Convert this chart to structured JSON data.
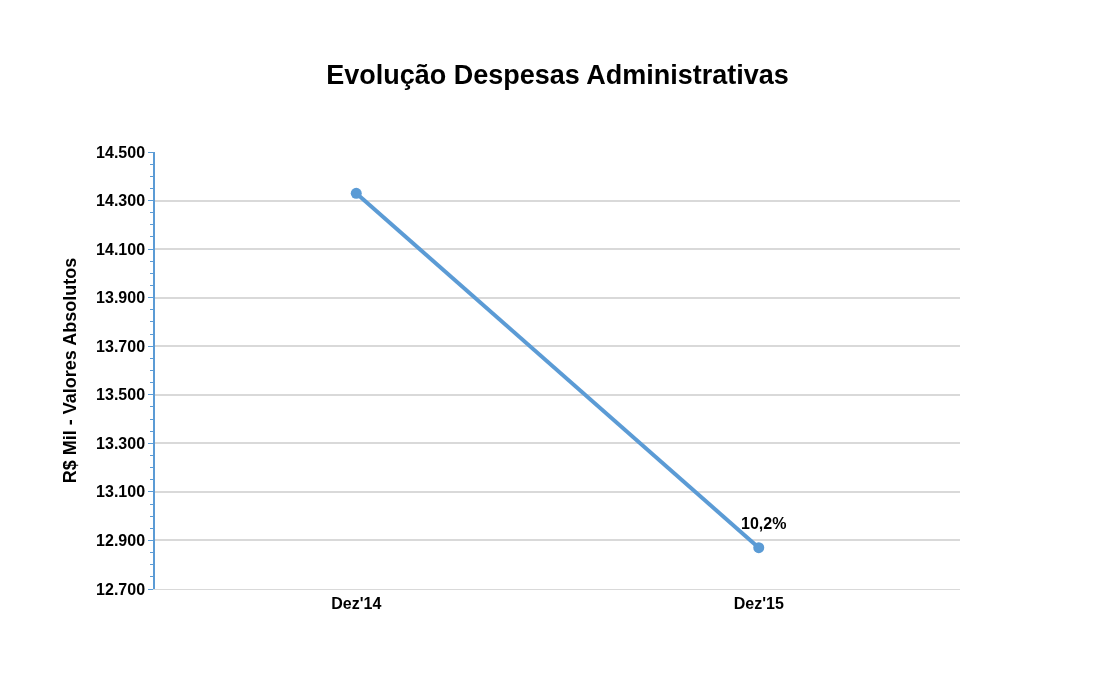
{
  "chart_data": {
    "type": "line",
    "title": "Evolução Despesas Administrativas",
    "ylabel": "R$ Mil - Valores Absolutos",
    "categories": [
      "Dez'14",
      "Dez'15"
    ],
    "series": [
      {
        "color": "#5b9bd5",
        "values": [
          14330,
          12870
        ]
      }
    ],
    "ylim": [
      12700,
      14500
    ],
    "yticks": [
      {
        "value": 12700,
        "label": "12.700"
      },
      {
        "value": 12900,
        "label": "12.900"
      },
      {
        "value": 13100,
        "label": "13.100"
      },
      {
        "value": 13300,
        "label": "13.300"
      },
      {
        "value": 13500,
        "label": "13.500"
      },
      {
        "value": 13700,
        "label": "13.700"
      },
      {
        "value": 13900,
        "label": "13.900"
      },
      {
        "value": 14100,
        "label": "14.100"
      },
      {
        "value": 14300,
        "label": "14.300"
      },
      {
        "value": 14500,
        "label": "14.500"
      }
    ],
    "annotations": [
      {
        "text": "10,2%",
        "x": "Dez'15",
        "y": 12870
      }
    ],
    "grid": "y",
    "marker": "circle",
    "line_style": "solid"
  }
}
